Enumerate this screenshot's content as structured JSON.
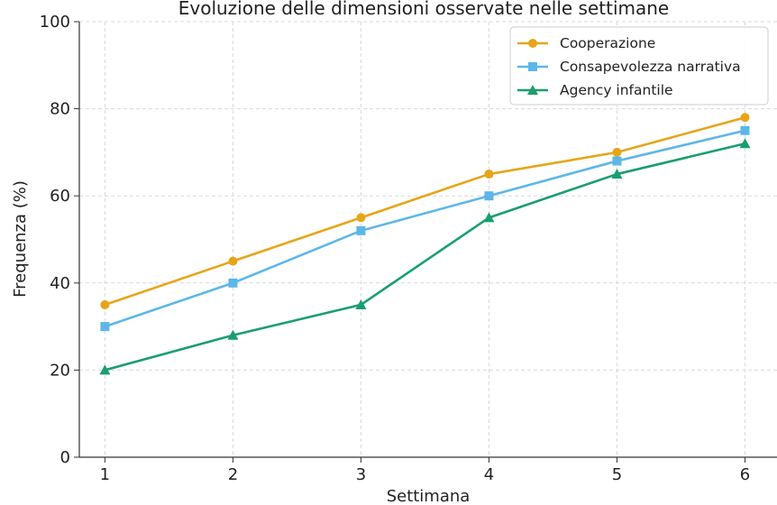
{
  "chart_data": {
    "type": "line",
    "title": "Evoluzione delle dimensioni osservate nelle settimane",
    "xlabel": "Settimana",
    "ylabel": "Frequenza (%)",
    "x": [
      1,
      2,
      3,
      4,
      5,
      6
    ],
    "xlim": [
      0.8,
      6.25
    ],
    "ylim": [
      0,
      100
    ],
    "yticks": [
      0,
      20,
      40,
      60,
      80,
      100
    ],
    "grid": true,
    "legend_position": "top-right",
    "series": [
      {
        "name": "Cooperazione",
        "marker": "circle",
        "color": "#E6A519",
        "values": [
          35,
          45,
          55,
          65,
          70,
          78
        ]
      },
      {
        "name": "Consapevolezza narrativa",
        "marker": "square",
        "color": "#5DB6E8",
        "values": [
          30,
          40,
          52,
          60,
          68,
          75
        ]
      },
      {
        "name": "Agency infantile",
        "marker": "triangle",
        "color": "#1A9E6E",
        "values": [
          20,
          28,
          35,
          55,
          65,
          72
        ]
      }
    ]
  }
}
